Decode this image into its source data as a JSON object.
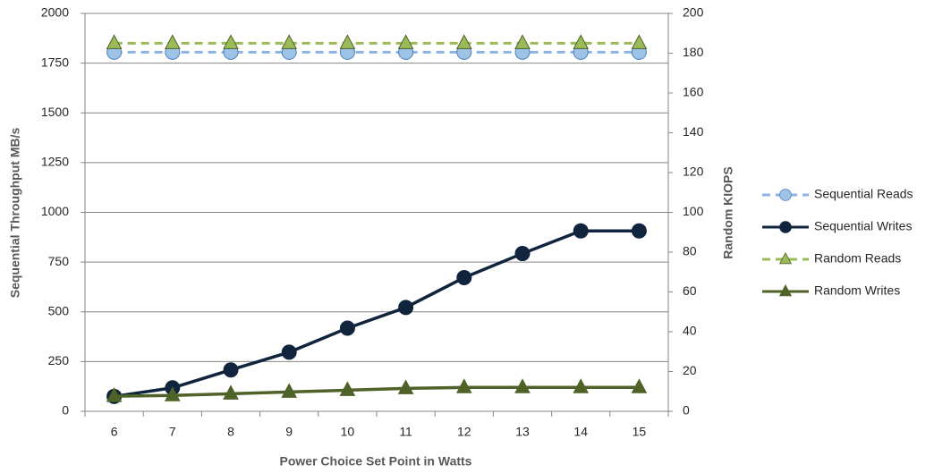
{
  "chart_data": {
    "type": "line",
    "x_label": "Power Choice Set Point in Watts",
    "y_label": "Sequential Throughput MB/s",
    "y2_label": "Random KIOPS",
    "categories": [
      "6",
      "7",
      "8",
      "9",
      "10",
      "11",
      "12",
      "13",
      "14",
      "15"
    ],
    "ylim": [
      0,
      2000
    ],
    "yticks": [
      0,
      250,
      500,
      750,
      1000,
      1250,
      1500,
      1750,
      2000
    ],
    "y2lim": [
      0,
      200
    ],
    "y2ticks": [
      0,
      20,
      40,
      60,
      80,
      100,
      120,
      140,
      160,
      180,
      200
    ],
    "grid": true,
    "legend": "right",
    "series": [
      {
        "name": "Sequential Reads",
        "color": "#8db3e2",
        "marker_fill": "#9dc3e6",
        "marker": "circle",
        "dashed": true,
        "values": [
          1805,
          1805,
          1805,
          1805,
          1805,
          1805,
          1805,
          1805,
          1805,
          1805
        ]
      },
      {
        "name": "Sequential Writes",
        "color": "#10243e",
        "marker_fill": "#10243e",
        "marker": "circle",
        "dashed": false,
        "values": [
          75,
          118,
          208,
          297,
          418,
          522,
          672,
          793,
          907,
          907
        ]
      },
      {
        "name": "Random Reads",
        "color": "#9bbb59",
        "marker_fill": "#9bbb59",
        "marker": "triangle",
        "dashed": true,
        "axis": "y2",
        "values": [
          185,
          185,
          185,
          185,
          185,
          185,
          185,
          185,
          185,
          185
        ]
      },
      {
        "name": "Random Writes",
        "color": "#4f6228",
        "marker_fill": "#4f6228",
        "marker": "triangle",
        "dashed": false,
        "axis": "y2",
        "values": [
          7.6,
          8,
          8.8,
          9.7,
          10.6,
          11.5,
          12,
          12,
          12,
          12
        ]
      }
    ]
  }
}
